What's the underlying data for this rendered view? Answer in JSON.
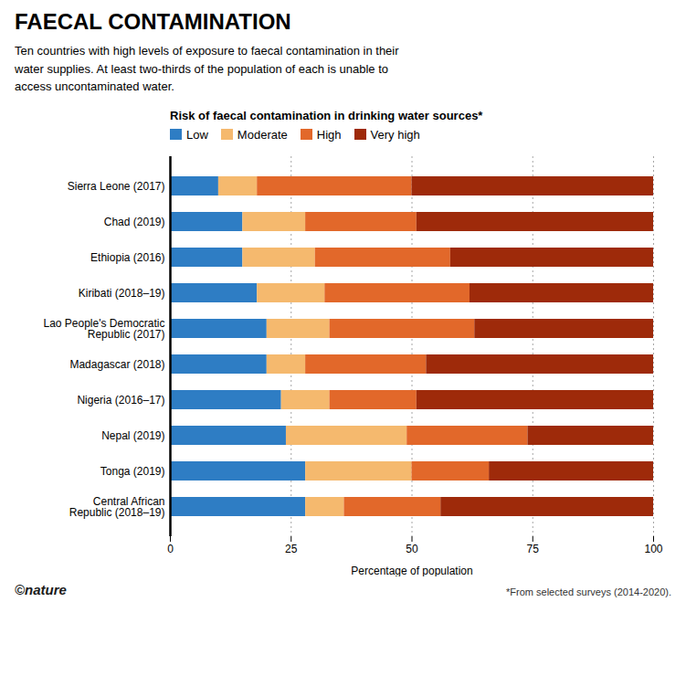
{
  "chart_data": {
    "type": "bar",
    "orientation": "horizontal",
    "stacked": true,
    "title": "FAECAL CONTAMINATION",
    "subtitle": "Ten countries with high levels of exposure to faecal contamination in their\nwater supplies. At least two-thirds of the population of each is unable to\naccess uncontaminated water.",
    "legend_title": "Risk of faecal contamination in drinking water sources*",
    "legend": "top",
    "caption": "*From selected surveys (2014-2020).",
    "annotations": [
      "©nature"
    ],
    "xlabel": "Percentage of population",
    "categories": [
      "Sierra Leone (2017)",
      "Chad (2019)",
      "Ethiopia (2016)",
      "Kiribati (2018–19)",
      "Lao People's Democratic\nRepublic (2017)",
      "Madagascar (2018)",
      "Nigeria (2016–17)",
      "Nepal (2019)",
      "Tonga (2019)",
      "Central African\nRepublic (2018–19)"
    ],
    "series": [
      {
        "name": "Low",
        "color": "#2e7dc4",
        "values": [
          10,
          15,
          15,
          18,
          20,
          20,
          23,
          24,
          28,
          28
        ]
      },
      {
        "name": "Moderate",
        "color": "#f5b96e",
        "values": [
          8,
          13,
          15,
          14,
          13,
          8,
          10,
          25,
          22,
          8
        ]
      },
      {
        "name": "High",
        "color": "#e2682a",
        "values": [
          32,
          23,
          28,
          30,
          30,
          25,
          18,
          25,
          16,
          20
        ]
      },
      {
        "name": "Very high",
        "color": "#9e2a0a",
        "values": [
          50,
          49,
          42,
          38,
          37,
          47,
          49,
          26,
          34,
          44
        ]
      }
    ],
    "xlim": [
      0,
      100
    ],
    "xticks": [
      0,
      25,
      50,
      75,
      100
    ],
    "grid": true
  }
}
